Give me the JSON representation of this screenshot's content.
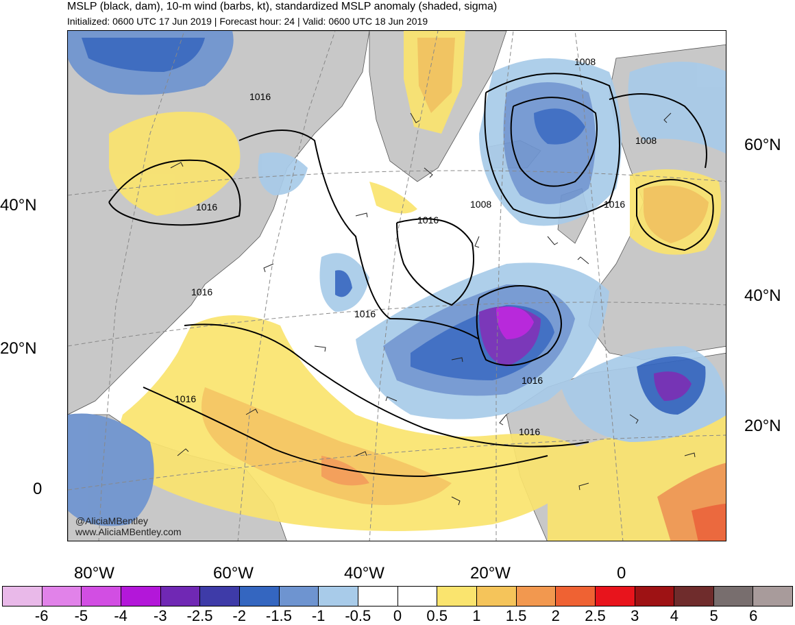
{
  "header": {
    "title": "MSLP (black, dam), 10-m wind (barbs, kt), standardized MSLP anomaly (shaded, sigma)",
    "subtitle": "Initialized: 0600 UTC 17 Jun 2019 | Forecast hour: 24 | Valid: 0600 UTC 18 Jun 2019"
  },
  "map": {
    "land_color": "#c8c8c8",
    "ocean_color": "#ffffff",
    "contour_color": "#000000",
    "lat_labels_left": [
      "40°N",
      "20°N",
      "0"
    ],
    "lat_labels_right": [
      "60°N",
      "40°N",
      "20°N"
    ],
    "lon_labels": [
      "80°W",
      "60°W",
      "40°W",
      "20°W",
      "0"
    ],
    "contour_labels": [
      "1016",
      "1016",
      "1016",
      "1016",
      "1016",
      "1016",
      "1008",
      "1008",
      "1008",
      "1016",
      "1016",
      "1016"
    ]
  },
  "credits": {
    "handle": "@AliciaMBentley",
    "website": "www.AliciaMBentley.com"
  },
  "colorbar": {
    "colors": [
      "#e9b9e9",
      "#e182e9",
      "#d24ee3",
      "#b317d9",
      "#7028b4",
      "#3e3ba8",
      "#3466c0",
      "#6e94d0",
      "#a8cbe9",
      "#ffffff",
      "#ffffff",
      "#fae46e",
      "#f5c45a",
      "#f2984f",
      "#ef6233",
      "#e8141c",
      "#9e1214",
      "#6f2c2c",
      "#786e6e",
      "#a89b9b"
    ],
    "ticks": [
      "-6",
      "-5",
      "-4",
      "-3",
      "-2.5",
      "-2",
      "-1.5",
      "-1",
      "-0.5",
      "0",
      "0.5",
      "1",
      "1.5",
      "2",
      "2.5",
      "3",
      "4",
      "5",
      "6"
    ]
  }
}
